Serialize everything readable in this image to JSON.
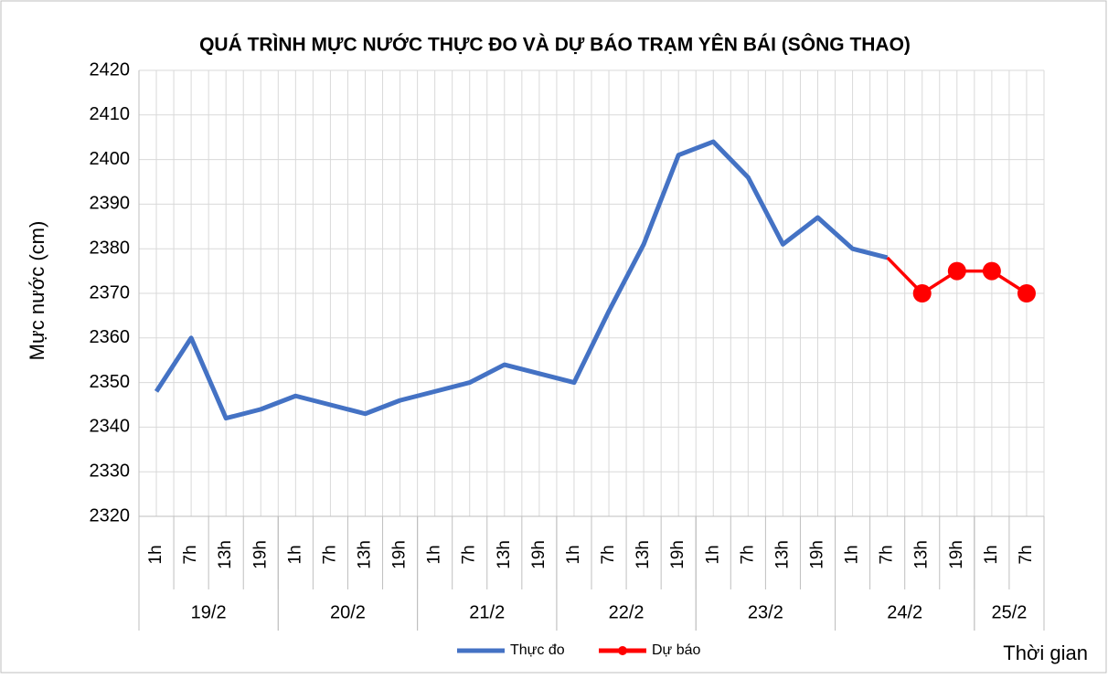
{
  "chart_data": {
    "type": "line",
    "title": "QUÁ TRÌNH MỰC NƯỚC THỰC ĐO VÀ DỰ BÁO TRẠM YÊN BÁI (SÔNG THAO)",
    "y_label": "Mực nước (cm)",
    "x_label": "Thời gian",
    "categories": [
      "1h",
      "7h",
      "13h",
      "19h",
      "1h",
      "7h",
      "13h",
      "19h",
      "1h",
      "7h",
      "13h",
      "19h",
      "1h",
      "7h",
      "13h",
      "19h",
      "1h",
      "7h",
      "13h",
      "19h",
      "1h",
      "7h",
      "13h",
      "19h",
      "1h",
      "7h"
    ],
    "x_groups": [
      {
        "label": "19/2",
        "count": 4
      },
      {
        "label": "20/2",
        "count": 4
      },
      {
        "label": "21/2",
        "count": 4
      },
      {
        "label": "22/2",
        "count": 4
      },
      {
        "label": "23/2",
        "count": 4
      },
      {
        "label": "24/2",
        "count": 4
      },
      {
        "label": "25/2",
        "count": 2
      }
    ],
    "series": [
      {
        "name": "Thực đo",
        "color": "#4472c4",
        "marker": false,
        "values": [
          2348,
          2360,
          2342,
          2344,
          2347,
          2345,
          2343,
          2346,
          2348,
          2350,
          2354,
          2352,
          2350,
          2366,
          2381,
          2401,
          2404,
          2396,
          2381,
          2387,
          2380,
          2378,
          null,
          null,
          null,
          null
        ]
      },
      {
        "name": "Dự báo",
        "color": "#ff0000",
        "marker": true,
        "values": [
          null,
          null,
          null,
          null,
          null,
          null,
          null,
          null,
          null,
          null,
          null,
          null,
          null,
          null,
          null,
          null,
          null,
          null,
          null,
          null,
          null,
          2378,
          2370,
          2375,
          2375,
          2370
        ]
      }
    ],
    "ylim": [
      2320,
      2420
    ],
    "yticks": [
      2320,
      2330,
      2340,
      2350,
      2360,
      2370,
      2380,
      2390,
      2400,
      2410,
      2420
    ],
    "grid": true,
    "legend": "bottom"
  }
}
